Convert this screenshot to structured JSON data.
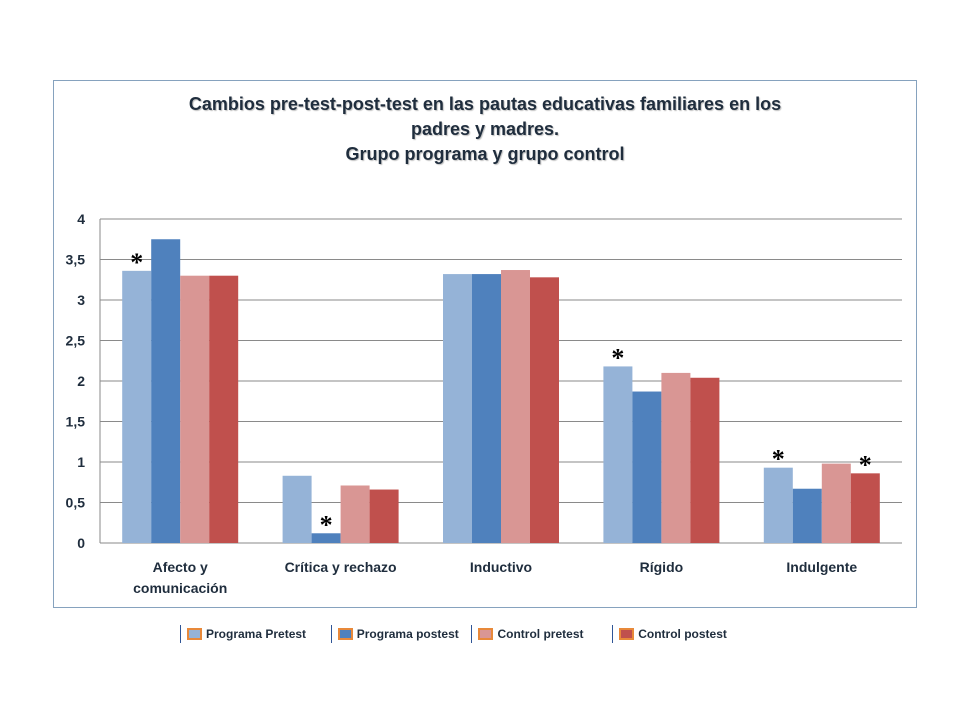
{
  "chart_data": {
    "type": "bar",
    "title": [
      "Cambios pre-test-post-test en las pautas educativas familiares en los",
      "padres y madres.",
      "Grupo programa y grupo control"
    ],
    "categories": [
      "Afecto y\ncomunicación",
      "Crítica y rechazo",
      "Inductivo",
      "Rígido",
      "Indulgente"
    ],
    "series": [
      {
        "name": "Programa Pretest",
        "color": "#95b3d7",
        "values": [
          3.36,
          0.83,
          3.32,
          2.18,
          0.93
        ]
      },
      {
        "name": "Programa postest",
        "color": "#4f81bd",
        "values": [
          3.75,
          0.12,
          3.32,
          1.87,
          0.67
        ]
      },
      {
        "name": "Control pretest",
        "color": "#d99694",
        "values": [
          3.3,
          0.71,
          3.37,
          2.1,
          0.98
        ]
      },
      {
        "name": "Control postest",
        "color": "#c0504d",
        "values": [
          3.3,
          0.66,
          3.28,
          2.04,
          0.86
        ]
      }
    ],
    "ylim": [
      0,
      4
    ],
    "yticks": [
      0,
      0.5,
      1,
      1.5,
      2,
      2.5,
      3,
      3.5,
      4
    ],
    "ytick_labels": [
      "0",
      "0,5",
      "1",
      "1,5",
      "2",
      "2,5",
      "3",
      "3,5",
      "4"
    ],
    "grid": true,
    "legend_position": "bottom",
    "annotations": [
      {
        "text": "*",
        "category": 0,
        "series": 0,
        "value": 3.36
      },
      {
        "text": "*",
        "category": 1,
        "series": 1,
        "value": 0.12
      },
      {
        "text": "*",
        "category": 3,
        "series": 0,
        "value": 2.18
      },
      {
        "text": "*",
        "category": 4,
        "series": 0,
        "value": 0.93
      },
      {
        "text": "*",
        "category": 4,
        "series": 3,
        "value": 0.86
      }
    ]
  },
  "legend": [
    {
      "label": "Programa Pretest",
      "color": "#95b3d7"
    },
    {
      "label": "Programa postest",
      "color": "#4f81bd"
    },
    {
      "label": "Control pretest",
      "color": "#d99694"
    },
    {
      "label": "Control postest",
      "color": "#c0504d"
    }
  ]
}
